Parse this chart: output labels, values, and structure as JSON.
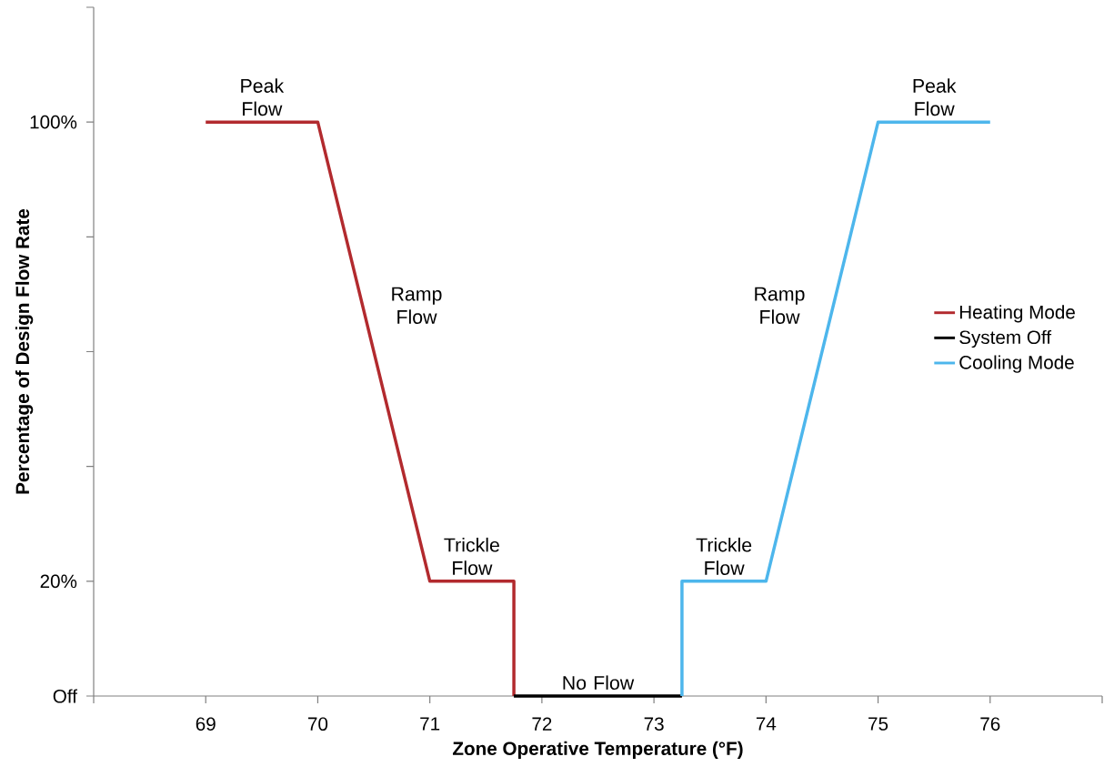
{
  "chart_data": {
    "type": "line",
    "xlabel": "Zone Operative Temperature (°F)",
    "ylabel": "Percentage of Design Flow Rate",
    "xlim": [
      68,
      77
    ],
    "xticks": [
      {
        "value": 68,
        "label": null
      },
      69,
      70,
      71,
      72,
      73,
      74,
      75,
      76,
      {
        "value": 77,
        "label": null
      }
    ],
    "ylim": [
      0,
      120
    ],
    "yticks": [
      {
        "value": 0,
        "label": "Off"
      },
      {
        "value": 20,
        "label": "20%"
      },
      {
        "value": 40,
        "label": null
      },
      {
        "value": 60,
        "label": null
      },
      {
        "value": 80,
        "label": null
      },
      {
        "value": 100,
        "label": "100%"
      },
      {
        "value": 120,
        "label": null
      }
    ],
    "series": [
      {
        "name": "Heating Mode",
        "color": "#b22a2e",
        "x": [
          69,
          70,
          71,
          71.75,
          71.75
        ],
        "values": [
          100,
          100,
          20,
          20,
          0
        ]
      },
      {
        "name": "System Off",
        "color": "#000000",
        "x": [
          71.75,
          73.25
        ],
        "values": [
          0,
          0
        ]
      },
      {
        "name": "Cooling Mode",
        "color": "#4db6ec",
        "x": [
          73.25,
          73.25,
          74,
          75,
          76
        ],
        "values": [
          0,
          20,
          20,
          100,
          100
        ]
      }
    ],
    "annotations": [
      "Peak Flow",
      "Ramp Flow",
      "Trickle Flow",
      "No Flow",
      "Trickle Flow",
      "Ramp Flow",
      "Peak Flow"
    ],
    "legend": "right",
    "grid": false,
    "marker": "none",
    "line_style": "solid"
  }
}
